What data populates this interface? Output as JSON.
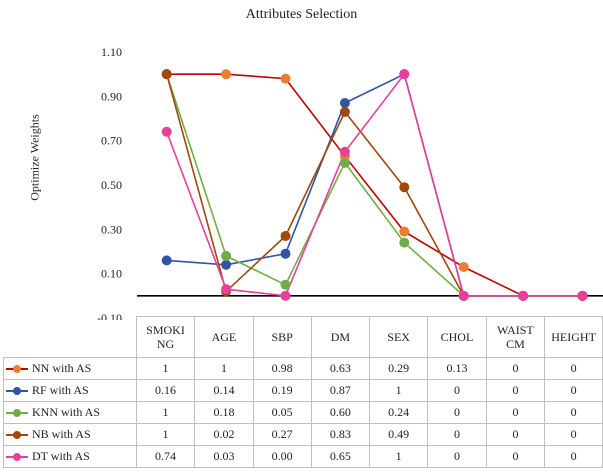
{
  "chart_data": {
    "type": "line",
    "title": "Attributes Selection",
    "ylabel": "Optimize Weights",
    "ylim": [
      -0.1,
      1.1
    ],
    "yticks": [
      "1.10",
      "0.90",
      "0.70",
      "0.50",
      "0.30",
      "0.10",
      "-0.10"
    ],
    "ytick_values": [
      1.1,
      0.9,
      0.7,
      0.5,
      0.3,
      0.1,
      -0.1
    ],
    "categories": [
      [
        "SMOKI",
        "NG"
      ],
      [
        "AGE"
      ],
      [
        "SBP"
      ],
      [
        "DM"
      ],
      [
        "SEX"
      ],
      [
        "CHOL"
      ],
      [
        "WAIST",
        "CM"
      ],
      [
        "HEIGHT"
      ]
    ],
    "grid": false,
    "legend": "data table below chart",
    "series": [
      {
        "name": "NN with AS",
        "color": "#ed7d31",
        "line_color": "#c00000",
        "values": [
          1,
          1,
          0.98,
          0.63,
          0.29,
          0.13,
          0,
          0
        ],
        "labels": [
          "1",
          "1",
          "0.98",
          "0.63",
          "0.29",
          "0.13",
          "0",
          "0"
        ]
      },
      {
        "name": "RF with AS",
        "color": "#2f55a4",
        "line_color": "#2f55a4",
        "values": [
          0.16,
          0.14,
          0.19,
          0.87,
          1,
          0,
          0,
          0
        ],
        "labels": [
          "0.16",
          "0.14",
          "0.19",
          "0.87",
          "1",
          "0",
          "0",
          "0"
        ]
      },
      {
        "name": "KNN with AS",
        "color": "#70ad47",
        "line_color": "#70ad47",
        "values": [
          1,
          0.18,
          0.05,
          0.6,
          0.24,
          0,
          0,
          0
        ],
        "labels": [
          "1",
          "0.18",
          "0.05",
          "0.60",
          "0.24",
          "0",
          "0",
          "0"
        ]
      },
      {
        "name": "NB with AS",
        "color": "#9e480e",
        "line_color": "#9e480e",
        "values": [
          1,
          0.02,
          0.27,
          0.83,
          0.49,
          0,
          0,
          0
        ],
        "labels": [
          "1",
          "0.02",
          "0.27",
          "0.83",
          "0.49",
          "0",
          "0",
          "0"
        ]
      },
      {
        "name": "DT with AS",
        "color": "#e8409a",
        "line_color": "#e8409a",
        "values": [
          0.74,
          0.03,
          0.0,
          0.65,
          1,
          0,
          0,
          0
        ],
        "labels": [
          "0.74",
          "0.03",
          "0.00",
          "0.65",
          "1",
          "0",
          "0",
          "0"
        ]
      }
    ]
  }
}
